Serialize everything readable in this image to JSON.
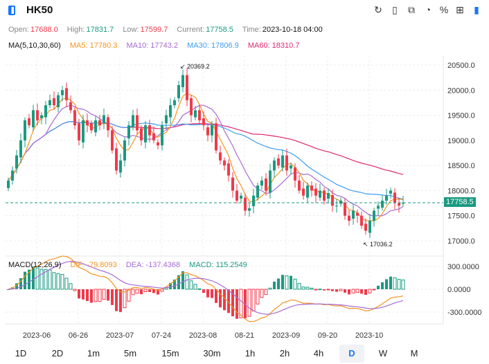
{
  "header": {
    "title": "HK50",
    "toolbar": [
      {
        "icon": "refresh-icon",
        "glyph": "↻"
      },
      {
        "icon": "note-icon",
        "glyph": "▯"
      },
      {
        "icon": "chart-icon",
        "glyph": "⧉"
      },
      {
        "icon": "pie-icon",
        "glyph": "◔"
      },
      {
        "icon": "percent-icon",
        "glyph": "%"
      },
      {
        "icon": "grid-icon",
        "glyph": "⊞"
      },
      {
        "icon": "panel-icon",
        "glyph": "▮"
      }
    ]
  },
  "info": {
    "open_label": "Open:",
    "open": "17688.0",
    "high_label": "High:",
    "high": "17831.7",
    "low_label": "Low:",
    "low": "17599.7",
    "current_label": "Current:",
    "current": "17758.5",
    "time_label": "Time:",
    "time": "2023-10-18 04:00"
  },
  "ma_legend": {
    "name": "MA(5,10,30,60)",
    "ma5": "MA5: 17780.3",
    "ma10": "MA10: 17743.2",
    "ma30": "MA30: 17806.9",
    "ma60": "MA60: 18310.7"
  },
  "macd_legend": {
    "name": "MACD(12,26,9)",
    "dif": "DIF: -79.8093",
    "dea": "DEA: -137.4368",
    "macd": "MACD: 115.2549"
  },
  "colors": {
    "up": "#1a9a80",
    "down": "#f03a4b",
    "ma5": "#f7931e",
    "ma10": "#a66bd3",
    "ma30": "#3d9bf0",
    "ma60": "#e0246f"
  },
  "timeframes": [
    "1D",
    "2D",
    "1m",
    "5m",
    "15m",
    "30m",
    "1h",
    "2h",
    "4h",
    "D",
    "W",
    "M"
  ],
  "active_timeframe": "D",
  "chart_data": {
    "type": "candlestick",
    "price_axis": {
      "ticks": [
        "20500.0",
        "20000.0",
        "19500.0",
        "19000.0",
        "18500.0",
        "18000.0",
        "17500.0",
        "17000.0"
      ],
      "range": [
        16800,
        20700
      ]
    },
    "macd_axis": {
      "ticks": [
        "300.0000",
        "0.0000",
        "-300.0000"
      ],
      "range": [
        -450,
        450
      ]
    },
    "x_ticks": [
      {
        "label": "2023-06",
        "index": 7
      },
      {
        "label": "06-26",
        "index": 17
      },
      {
        "label": "2023-07",
        "index": 27
      },
      {
        "label": "07-24",
        "index": 37
      },
      {
        "label": "2023-08",
        "index": 47
      },
      {
        "label": "08-21",
        "index": 57
      },
      {
        "label": "2023-09",
        "index": 67
      },
      {
        "label": "09-20",
        "index": 77
      },
      {
        "label": "2023-10",
        "index": 87
      }
    ],
    "current_price": "17758.5",
    "annotations": {
      "max": "20369.2",
      "min": "17036.2"
    },
    "closes": [
      18200,
      18400,
      18700,
      19000,
      19400,
      19300,
      19600,
      19400,
      19500,
      19700,
      19800,
      19700,
      19900,
      20000,
      19800,
      19600,
      19300,
      19000,
      19400,
      19300,
      19200,
      19400,
      19300,
      19500,
      19200,
      18800,
      18400,
      18600,
      19000,
      19300,
      19500,
      19200,
      19000,
      19300,
      19100,
      19000,
      18900,
      19300,
      19500,
      19700,
      19800,
      20100,
      20300,
      19800,
      19500,
      19600,
      19400,
      19300,
      19100,
      19300,
      18800,
      18600,
      18500,
      18300,
      18000,
      17800,
      17900,
      17600,
      17650,
      17900,
      18100,
      18200,
      18000,
      18400,
      18600,
      18500,
      18700,
      18400,
      18500,
      18200,
      18000,
      17900,
      18100,
      18000,
      17900,
      18000,
      17800,
      17950,
      17700,
      17700,
      17800,
      17500,
      17400,
      17600,
      17500,
      17300,
      17200,
      17400,
      17600,
      17700,
      17800,
      17900,
      18000,
      17750,
      17700,
      17758.5
    ]
  }
}
